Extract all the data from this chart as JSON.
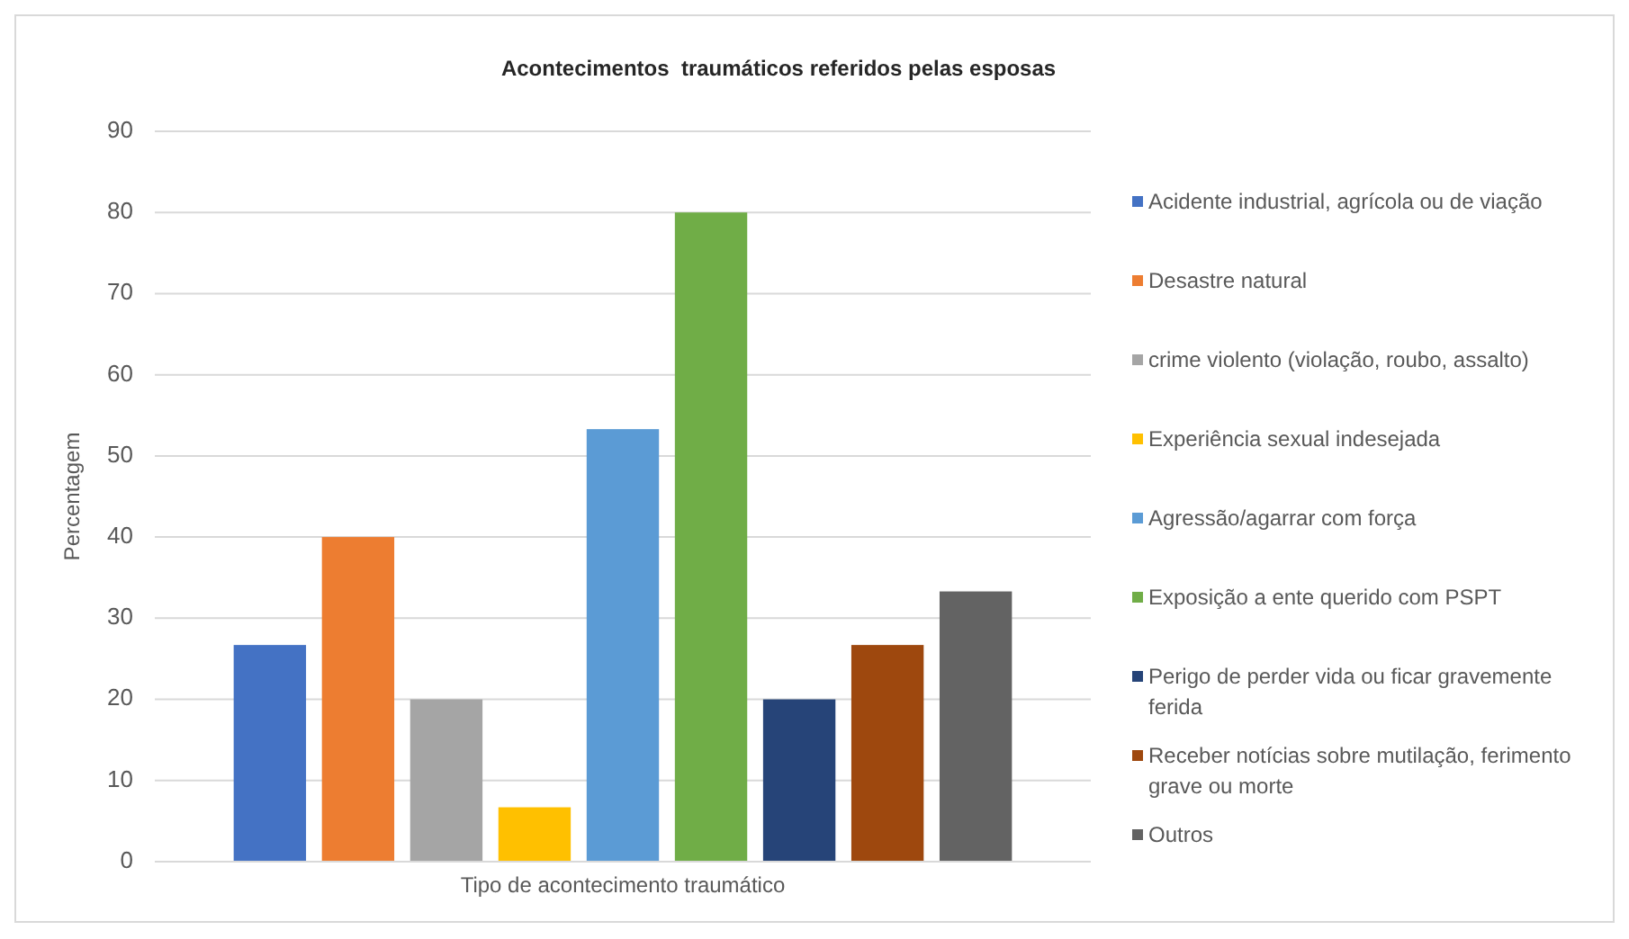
{
  "chart_data": {
    "type": "bar",
    "title": "Acontecimentos  traumáticos referidos pelas esposas",
    "xlabel": "Tipo de acontecimento traumático",
    "ylabel": "Percentagem",
    "categories": [
      null
    ],
    "series": [
      {
        "name": "Acidente industrial, agrícola ou de viação",
        "color": "#4472c4",
        "values": [
          26.7
        ]
      },
      {
        "name": "Desastre natural",
        "color": "#ed7d31",
        "values": [
          40
        ]
      },
      {
        "name": "crime violento (violação, roubo, assalto)",
        "color": "#a5a5a5",
        "values": [
          20
        ]
      },
      {
        "name": "Experiência sexual indesejada",
        "color": "#ffc000",
        "values": [
          6.7
        ]
      },
      {
        "name": "Agressão/agarrar com força",
        "color": "#5b9bd5",
        "values": [
          53.3
        ]
      },
      {
        "name": "Exposição a ente querido com PSPT",
        "color": "#70ad47",
        "values": [
          80
        ]
      },
      {
        "name": "Perigo de perder vida ou ficar gravemente ferida",
        "color": "#264478",
        "values": [
          20
        ]
      },
      {
        "name": "Receber notícias sobre mutilação, ferimento grave ou morte",
        "color": "#9e480e",
        "values": [
          26.7
        ]
      },
      {
        "name": "Outros",
        "color": "#636363",
        "values": [
          33.3
        ]
      }
    ],
    "ylim": [
      0,
      90
    ],
    "yticks": [
      0,
      10,
      20,
      30,
      40,
      50,
      60,
      70,
      80,
      90
    ],
    "grid": "y",
    "legend": "right"
  }
}
